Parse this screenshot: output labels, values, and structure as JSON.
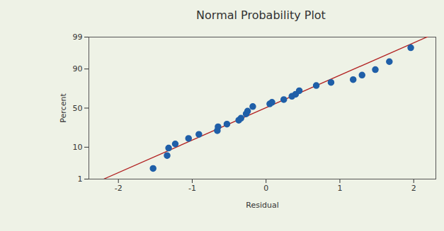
{
  "chart_data": {
    "type": "probability_plot",
    "title": "Normal Probability Plot",
    "x_label": "Residual",
    "y_label": "Percent",
    "x": [
      -1.53,
      -1.34,
      -1.32,
      -1.23,
      -1.05,
      -0.91,
      -0.66,
      -0.65,
      -0.53,
      -0.37,
      -0.34,
      -0.27,
      -0.25,
      -0.18,
      0.05,
      0.08,
      0.24,
      0.35,
      0.4,
      0.45,
      0.68,
      0.88,
      1.18,
      1.3,
      1.48,
      1.67,
      1.96
    ],
    "values": [
      2.4,
      6,
      9.5,
      12,
      16,
      19.5,
      23,
      27,
      30,
      34.5,
      37,
      42.5,
      46,
      52,
      55.5,
      57.5,
      61,
      65,
      67.5,
      71.5,
      77,
      80,
      82.5,
      86,
      89.6,
      93.6,
      97.6
    ],
    "color": "#1f5fa8",
    "marker": "circle",
    "fit_line": {
      "x": [
        -2.2,
        2.3
      ],
      "values": [
        1,
        99.3
      ],
      "color": "#b22222",
      "line_style": "solid"
    },
    "xlim": [
      -2.4,
      2.3
    ],
    "ylim": [
      1,
      99
    ],
    "xticks": [
      -2,
      -1,
      0,
      1,
      2
    ],
    "yticks": [
      1,
      10,
      50,
      90,
      99
    ],
    "grid": false
  }
}
